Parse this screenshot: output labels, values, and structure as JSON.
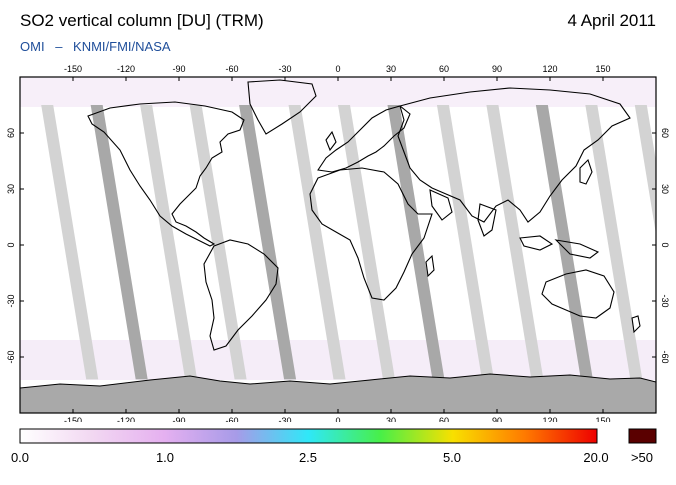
{
  "header": {
    "title": "SO2 vertical column [DU] (TRM)",
    "date": "4 April 2011",
    "subtitle_instrument": "OMI",
    "subtitle_sep": "–",
    "subtitle_team": "KNMI/FMI/NASA"
  },
  "map": {
    "projection": "equirectangular",
    "lon_range": [
      -180,
      180
    ],
    "lat_range": [
      -90,
      90
    ],
    "lon_tick_labels": [
      "-150",
      "-120",
      "-90",
      "-60",
      "-30",
      "0",
      "30",
      "60",
      "90",
      "120",
      "150"
    ],
    "lon_tick_values": [
      -150,
      -120,
      -90,
      -60,
      -30,
      0,
      30,
      60,
      90,
      120,
      150
    ],
    "lat_tick_labels": [
      "60",
      "30",
      "0",
      "-30",
      "-60"
    ],
    "lat_tick_values": [
      60,
      30,
      0,
      -30,
      -60
    ],
    "no_data_color": "#a9a9a9",
    "swath_colors": [
      "#d3d3d3",
      "#a8a8a8"
    ]
  },
  "colorbar": {
    "labels": [
      "0.0",
      "1.0",
      "2.5",
      "5.0",
      "20.0"
    ],
    "overflow_label": ">50",
    "stops": [
      "#ffffff",
      "#f2d8f2",
      "#e5b0f0",
      "#a79be8",
      "#2fe8f8",
      "#48ef48",
      "#f8e000",
      "#ff7a00",
      "#ee0000"
    ],
    "overflow_color": "#5a0000"
  }
}
